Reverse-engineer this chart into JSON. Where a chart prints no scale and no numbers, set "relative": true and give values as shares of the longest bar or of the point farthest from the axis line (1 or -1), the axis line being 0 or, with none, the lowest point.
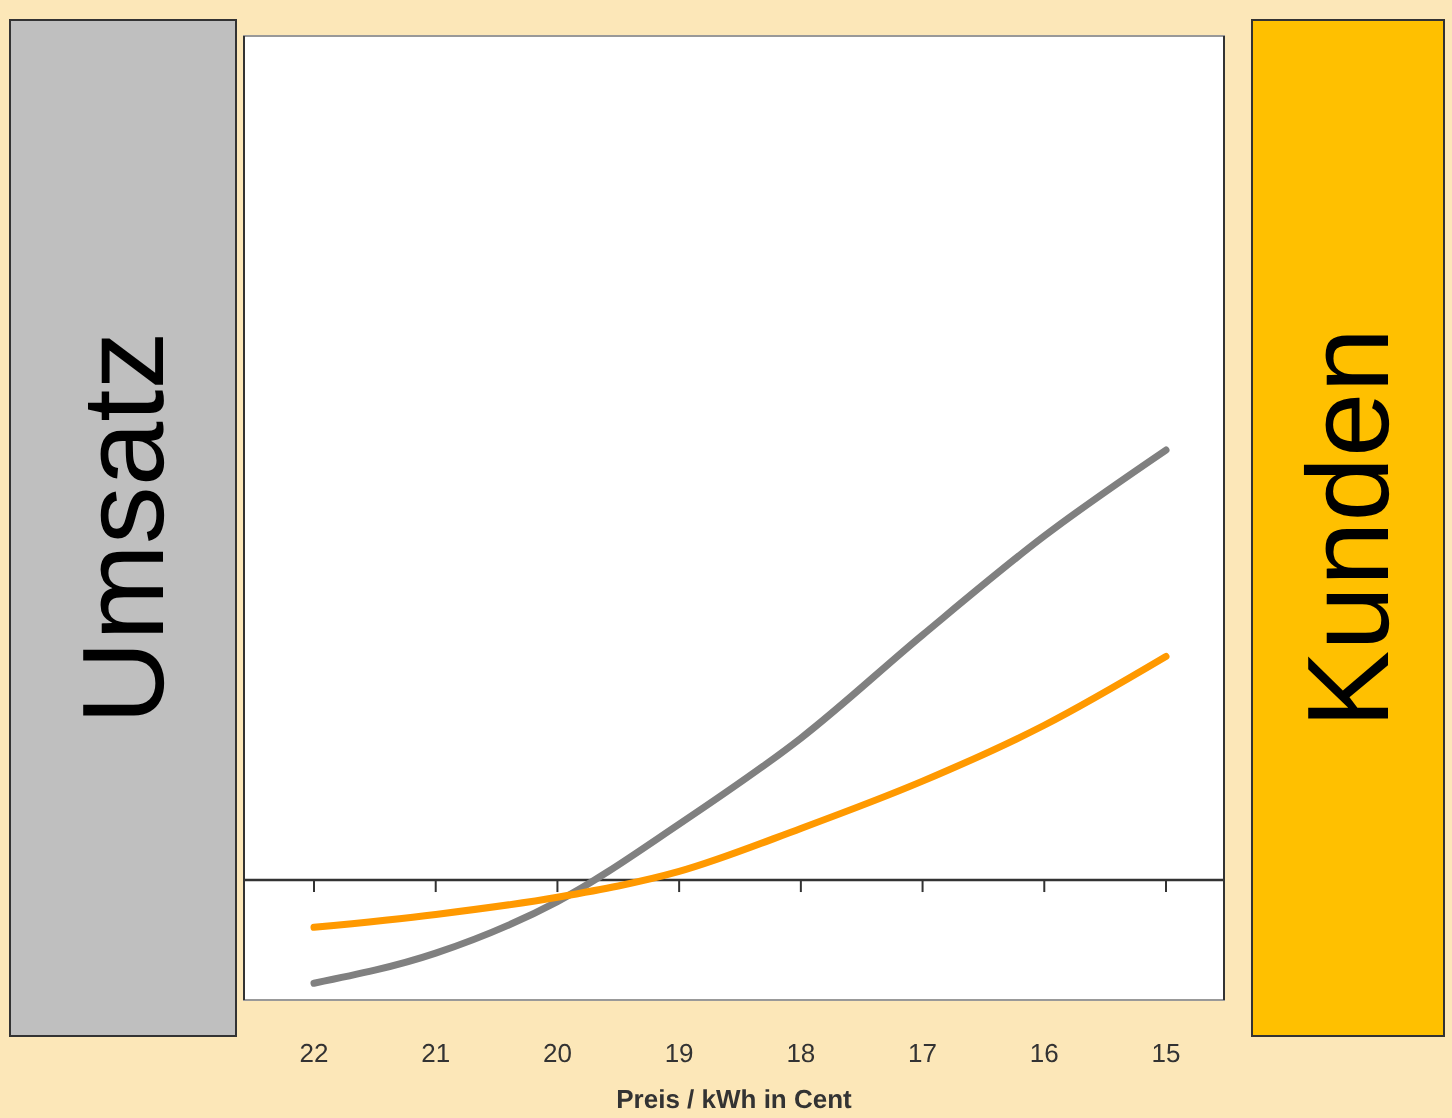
{
  "chart_data": {
    "type": "line",
    "xlabel": "Preis / kWh in Cent",
    "ylabel": "Umsatz",
    "y2label": "Kunden",
    "categories": [
      "22",
      "21",
      "20",
      "19",
      "18",
      "17",
      "16",
      "15"
    ],
    "relative": true,
    "series": [
      {
        "color": "#808080",
        "values": [
          -0.24,
          -0.17,
          -0.05,
          0.13,
          0.33,
          0.57,
          0.8,
          1
        ]
      },
      {
        "color": "#ff9900",
        "values": [
          -0.11,
          -0.08,
          -0.04,
          0.02,
          0.12,
          0.23,
          0.36,
          0.52
        ]
      }
    ]
  }
}
